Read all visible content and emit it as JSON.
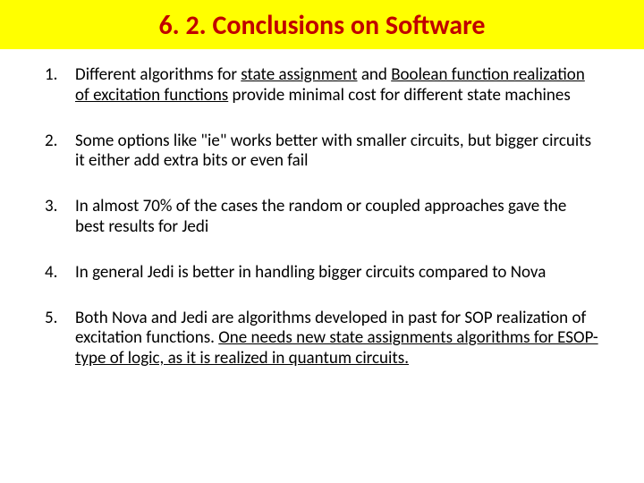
{
  "title": "6. 2. Conclusions on Software",
  "title_color": "#c00000",
  "title_bg": "#ffff00",
  "title_fontsize": 30,
  "body_fontsize": 19,
  "items": [
    {
      "num": "1.",
      "segs": [
        {
          "t": "Different algorithms  for ",
          "u": false
        },
        {
          "t": "state assignment",
          "u": true
        },
        {
          "t": " and ",
          "u": false
        },
        {
          "t": "Boolean function realization of excitation functions",
          "u": true
        },
        {
          "t": " provide minimal cost for different state machines",
          "u": false
        }
      ]
    },
    {
      "num": "2.",
      "segs": [
        {
          "t": "Some options like \"ie\" works better with smaller circuits, but bigger circuits it either add extra bits or even fail",
          "u": false
        }
      ]
    },
    {
      "num": "3.",
      "segs": [
        {
          "t": "In almost 70% of the cases the random or coupled approaches gave the best results for Jedi",
          "u": false
        }
      ]
    },
    {
      "num": "4.",
      "segs": [
        {
          "t": "In general Jedi is better in handling bigger circuits compared to Nova",
          "u": false
        }
      ]
    },
    {
      "num": "5.",
      "segs": [
        {
          "t": "Both Nova and Jedi are algorithms  developed in past for SOP realization of excitation functions. ",
          "u": false
        },
        {
          "t": "One needs new state assignments algorithms for ESOP-type of logic, as it is realized in quantum circuits.",
          "u": true
        }
      ]
    }
  ]
}
